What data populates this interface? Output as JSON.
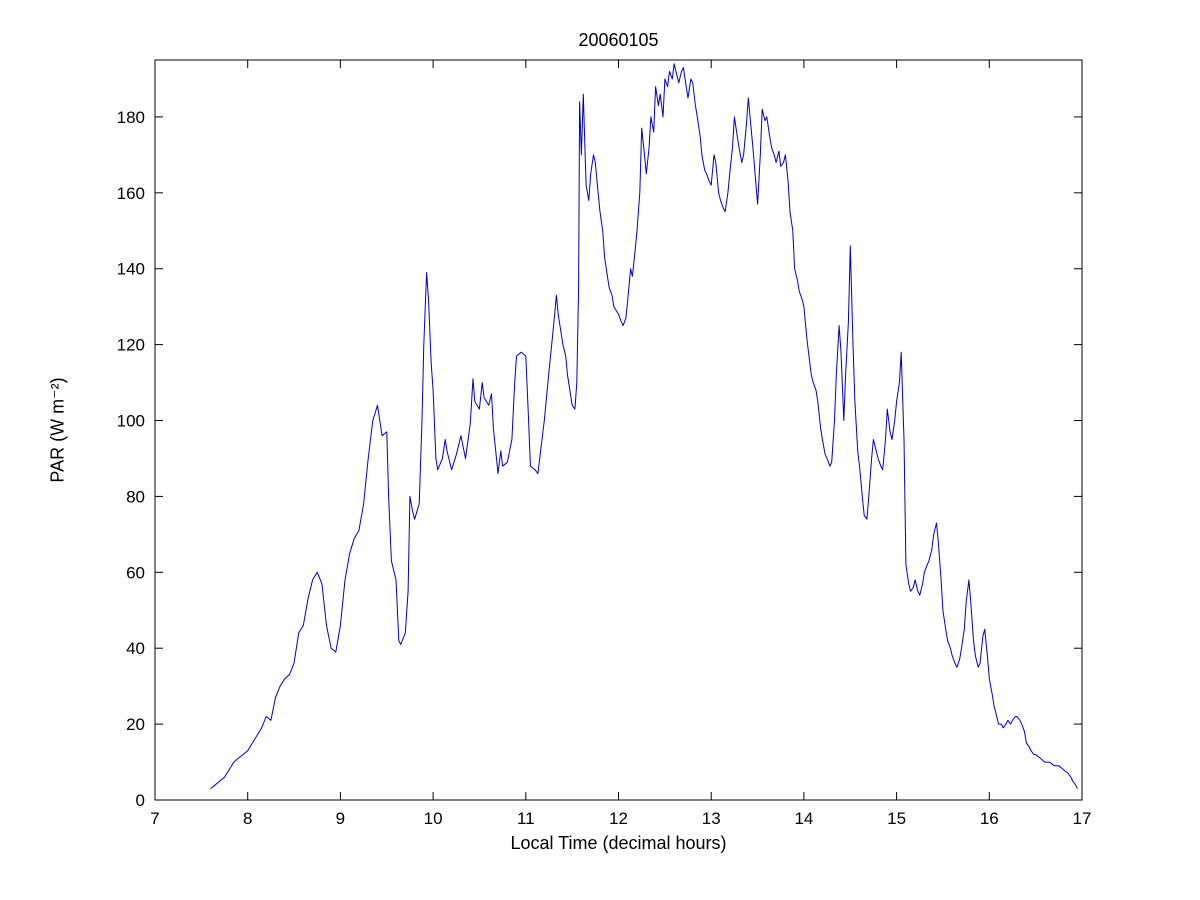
{
  "chart_data": {
    "type": "line",
    "title": "20060105",
    "xlabel": "Local Time (decimal hours)",
    "ylabel": "PAR (W m⁻²)",
    "xlim": [
      7,
      17
    ],
    "ylim": [
      0,
      195
    ],
    "xticks": [
      7,
      8,
      9,
      10,
      11,
      12,
      13,
      14,
      15,
      16,
      17
    ],
    "yticks": [
      0,
      20,
      40,
      60,
      80,
      100,
      120,
      140,
      160,
      180
    ],
    "grid": false,
    "legend": "none",
    "line_color": "#0000bf",
    "axis_color": "#000000",
    "series": [
      {
        "name": "PAR",
        "points": [
          [
            7.6,
            3
          ],
          [
            7.65,
            4
          ],
          [
            7.7,
            5
          ],
          [
            7.75,
            6
          ],
          [
            7.8,
            8
          ],
          [
            7.85,
            10
          ],
          [
            7.9,
            11
          ],
          [
            7.95,
            12
          ],
          [
            8.0,
            13
          ],
          [
            8.05,
            15
          ],
          [
            8.1,
            17
          ],
          [
            8.15,
            19
          ],
          [
            8.2,
            22
          ],
          [
            8.25,
            21
          ],
          [
            8.3,
            27
          ],
          [
            8.35,
            30
          ],
          [
            8.4,
            32
          ],
          [
            8.45,
            33
          ],
          [
            8.5,
            36
          ],
          [
            8.55,
            44
          ],
          [
            8.6,
            46
          ],
          [
            8.65,
            53
          ],
          [
            8.7,
            58
          ],
          [
            8.75,
            60
          ],
          [
            8.8,
            57
          ],
          [
            8.85,
            46
          ],
          [
            8.9,
            40
          ],
          [
            8.95,
            39
          ],
          [
            9.0,
            46
          ],
          [
            9.05,
            58
          ],
          [
            9.1,
            65
          ],
          [
            9.15,
            69
          ],
          [
            9.2,
            71
          ],
          [
            9.25,
            78
          ],
          [
            9.3,
            90
          ],
          [
            9.35,
            100
          ],
          [
            9.4,
            104
          ],
          [
            9.45,
            96
          ],
          [
            9.5,
            97
          ],
          [
            9.52,
            80
          ],
          [
            9.55,
            63
          ],
          [
            9.6,
            58
          ],
          [
            9.63,
            42
          ],
          [
            9.65,
            41
          ],
          [
            9.7,
            44
          ],
          [
            9.73,
            55
          ],
          [
            9.75,
            80
          ],
          [
            9.78,
            76
          ],
          [
            9.8,
            74
          ],
          [
            9.85,
            78
          ],
          [
            9.88,
            100
          ],
          [
            9.9,
            120
          ],
          [
            9.93,
            139
          ],
          [
            9.95,
            132
          ],
          [
            9.98,
            115
          ],
          [
            10.0,
            108
          ],
          [
            10.03,
            90
          ],
          [
            10.05,
            87
          ],
          [
            10.1,
            90
          ],
          [
            10.13,
            95
          ],
          [
            10.15,
            92
          ],
          [
            10.2,
            87
          ],
          [
            10.25,
            91
          ],
          [
            10.3,
            96
          ],
          [
            10.35,
            90
          ],
          [
            10.4,
            99
          ],
          [
            10.43,
            111
          ],
          [
            10.45,
            105
          ],
          [
            10.5,
            103
          ],
          [
            10.53,
            110
          ],
          [
            10.55,
            106
          ],
          [
            10.6,
            104
          ],
          [
            10.63,
            107
          ],
          [
            10.65,
            98
          ],
          [
            10.7,
            86
          ],
          [
            10.73,
            92
          ],
          [
            10.75,
            88
          ],
          [
            10.8,
            89
          ],
          [
            10.85,
            95
          ],
          [
            10.88,
            110
          ],
          [
            10.9,
            117
          ],
          [
            10.95,
            118
          ],
          [
            11.0,
            117
          ],
          [
            11.03,
            100
          ],
          [
            11.05,
            88
          ],
          [
            11.1,
            87
          ],
          [
            11.13,
            86
          ],
          [
            11.15,
            90
          ],
          [
            11.2,
            100
          ],
          [
            11.25,
            113
          ],
          [
            11.3,
            125
          ],
          [
            11.33,
            133
          ],
          [
            11.35,
            128
          ],
          [
            11.4,
            120
          ],
          [
            11.43,
            117
          ],
          [
            11.45,
            112
          ],
          [
            11.5,
            104
          ],
          [
            11.53,
            103
          ],
          [
            11.55,
            110
          ],
          [
            11.57,
            135
          ],
          [
            11.58,
            184
          ],
          [
            11.6,
            170
          ],
          [
            11.62,
            186
          ],
          [
            11.63,
            178
          ],
          [
            11.65,
            162
          ],
          [
            11.68,
            158
          ],
          [
            11.7,
            165
          ],
          [
            11.73,
            170
          ],
          [
            11.75,
            168
          ],
          [
            11.78,
            160
          ],
          [
            11.8,
            155
          ],
          [
            11.83,
            150
          ],
          [
            11.85,
            143
          ],
          [
            11.88,
            138
          ],
          [
            11.9,
            135
          ],
          [
            11.93,
            133
          ],
          [
            11.95,
            130
          ],
          [
            12.0,
            128
          ],
          [
            12.03,
            126
          ],
          [
            12.05,
            125
          ],
          [
            12.08,
            127
          ],
          [
            12.1,
            132
          ],
          [
            12.13,
            140
          ],
          [
            12.15,
            138
          ],
          [
            12.18,
            145
          ],
          [
            12.2,
            150
          ],
          [
            12.23,
            160
          ],
          [
            12.25,
            177
          ],
          [
            12.28,
            170
          ],
          [
            12.3,
            165
          ],
          [
            12.33,
            172
          ],
          [
            12.35,
            180
          ],
          [
            12.38,
            176
          ],
          [
            12.4,
            188
          ],
          [
            12.43,
            183
          ],
          [
            12.45,
            186
          ],
          [
            12.48,
            180
          ],
          [
            12.5,
            190
          ],
          [
            12.53,
            188
          ],
          [
            12.55,
            192
          ],
          [
            12.58,
            190
          ],
          [
            12.6,
            194
          ],
          [
            12.63,
            191
          ],
          [
            12.65,
            189
          ],
          [
            12.68,
            192
          ],
          [
            12.7,
            193
          ],
          [
            12.73,
            188
          ],
          [
            12.75,
            185
          ],
          [
            12.78,
            190
          ],
          [
            12.8,
            189
          ],
          [
            12.83,
            183
          ],
          [
            12.85,
            180
          ],
          [
            12.88,
            175
          ],
          [
            12.9,
            170
          ],
          [
            12.93,
            166
          ],
          [
            12.95,
            165
          ],
          [
            12.98,
            163
          ],
          [
            13.0,
            162
          ],
          [
            13.03,
            170
          ],
          [
            13.05,
            168
          ],
          [
            13.08,
            160
          ],
          [
            13.1,
            158
          ],
          [
            13.13,
            156
          ],
          [
            13.15,
            155
          ],
          [
            13.18,
            160
          ],
          [
            13.2,
            165
          ],
          [
            13.23,
            172
          ],
          [
            13.25,
            180
          ],
          [
            13.28,
            175
          ],
          [
            13.3,
            172
          ],
          [
            13.33,
            168
          ],
          [
            13.35,
            170
          ],
          [
            13.38,
            178
          ],
          [
            13.4,
            185
          ],
          [
            13.43,
            177
          ],
          [
            13.45,
            172
          ],
          [
            13.48,
            163
          ],
          [
            13.5,
            157
          ],
          [
            13.53,
            170
          ],
          [
            13.55,
            182
          ],
          [
            13.58,
            179
          ],
          [
            13.6,
            180
          ],
          [
            13.63,
            175
          ],
          [
            13.65,
            172
          ],
          [
            13.68,
            170
          ],
          [
            13.7,
            168
          ],
          [
            13.73,
            171
          ],
          [
            13.75,
            167
          ],
          [
            13.78,
            168
          ],
          [
            13.8,
            170
          ],
          [
            13.83,
            163
          ],
          [
            13.85,
            155
          ],
          [
            13.88,
            150
          ],
          [
            13.9,
            140
          ],
          [
            13.93,
            137
          ],
          [
            13.95,
            134
          ],
          [
            13.98,
            132
          ],
          [
            14.0,
            130
          ],
          [
            14.03,
            122
          ],
          [
            14.05,
            118
          ],
          [
            14.08,
            112
          ],
          [
            14.1,
            110
          ],
          [
            14.13,
            108
          ],
          [
            14.15,
            105
          ],
          [
            14.18,
            98
          ],
          [
            14.2,
            95
          ],
          [
            14.23,
            91
          ],
          [
            14.25,
            90
          ],
          [
            14.28,
            88
          ],
          [
            14.3,
            89
          ],
          [
            14.33,
            100
          ],
          [
            14.35,
            112
          ],
          [
            14.38,
            125
          ],
          [
            14.4,
            118
          ],
          [
            14.43,
            100
          ],
          [
            14.45,
            112
          ],
          [
            14.48,
            126
          ],
          [
            14.5,
            146
          ],
          [
            14.53,
            120
          ],
          [
            14.55,
            105
          ],
          [
            14.58,
            92
          ],
          [
            14.6,
            88
          ],
          [
            14.63,
            80
          ],
          [
            14.65,
            75
          ],
          [
            14.68,
            74
          ],
          [
            14.7,
            80
          ],
          [
            14.73,
            90
          ],
          [
            14.75,
            95
          ],
          [
            14.78,
            92
          ],
          [
            14.8,
            90
          ],
          [
            14.83,
            88
          ],
          [
            14.85,
            87
          ],
          [
            14.88,
            95
          ],
          [
            14.9,
            103
          ],
          [
            14.93,
            97
          ],
          [
            14.95,
            95
          ],
          [
            14.98,
            100
          ],
          [
            15.0,
            105
          ],
          [
            15.03,
            110
          ],
          [
            15.05,
            118
          ],
          [
            15.08,
            95
          ],
          [
            15.1,
            62
          ],
          [
            15.13,
            57
          ],
          [
            15.15,
            55
          ],
          [
            15.18,
            56
          ],
          [
            15.2,
            58
          ],
          [
            15.23,
            55
          ],
          [
            15.25,
            54
          ],
          [
            15.28,
            57
          ],
          [
            15.3,
            60
          ],
          [
            15.33,
            62
          ],
          [
            15.35,
            63
          ],
          [
            15.38,
            66
          ],
          [
            15.4,
            70
          ],
          [
            15.43,
            73
          ],
          [
            15.45,
            68
          ],
          [
            15.48,
            58
          ],
          [
            15.5,
            50
          ],
          [
            15.53,
            45
          ],
          [
            15.55,
            42
          ],
          [
            15.58,
            40
          ],
          [
            15.6,
            38
          ],
          [
            15.63,
            36
          ],
          [
            15.65,
            35
          ],
          [
            15.68,
            37
          ],
          [
            15.7,
            40
          ],
          [
            15.73,
            45
          ],
          [
            15.75,
            52
          ],
          [
            15.78,
            58
          ],
          [
            15.8,
            52
          ],
          [
            15.83,
            42
          ],
          [
            15.85,
            38
          ],
          [
            15.88,
            35
          ],
          [
            15.9,
            36
          ],
          [
            15.93,
            43
          ],
          [
            15.95,
            45
          ],
          [
            15.98,
            38
          ],
          [
            16.0,
            32
          ],
          [
            16.03,
            28
          ],
          [
            16.05,
            25
          ],
          [
            16.08,
            22
          ],
          [
            16.1,
            20
          ],
          [
            16.13,
            20
          ],
          [
            16.15,
            19
          ],
          [
            16.18,
            20
          ],
          [
            16.2,
            21
          ],
          [
            16.23,
            20
          ],
          [
            16.25,
            21
          ],
          [
            16.28,
            22
          ],
          [
            16.3,
            22
          ],
          [
            16.33,
            21
          ],
          [
            16.35,
            20
          ],
          [
            16.38,
            18
          ],
          [
            16.4,
            15
          ],
          [
            16.43,
            14
          ],
          [
            16.45,
            13
          ],
          [
            16.48,
            12
          ],
          [
            16.5,
            12
          ],
          [
            16.55,
            11
          ],
          [
            16.6,
            10
          ],
          [
            16.65,
            10
          ],
          [
            16.7,
            9
          ],
          [
            16.75,
            9
          ],
          [
            16.8,
            8
          ],
          [
            16.85,
            7
          ],
          [
            16.88,
            6
          ],
          [
            16.9,
            5
          ],
          [
            16.93,
            4
          ],
          [
            16.95,
            3
          ]
        ]
      }
    ]
  }
}
